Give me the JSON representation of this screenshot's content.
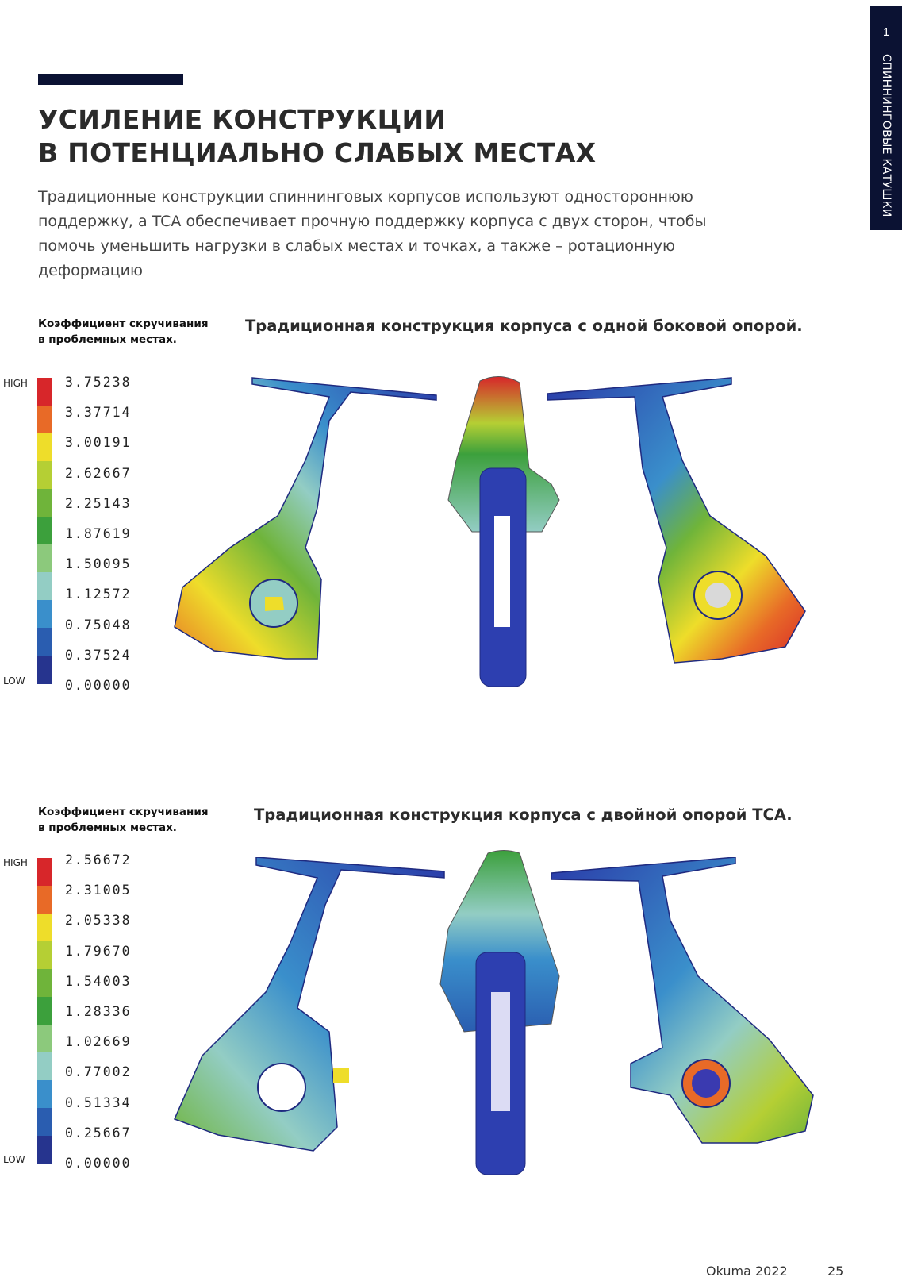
{
  "side_tab": {
    "number": "1",
    "label": "СПИННИНГОВЫЕ КАТУШКИ"
  },
  "title": {
    "line1": "УСИЛЕНИЕ КОНСТРУКЦИИ",
    "line2": "В ПОТЕНЦИАЛЬНО СЛАБЫХ МЕСТАХ"
  },
  "intro": "Традиционные конструкции спиннинговых корпусов используют одностороннюю поддержку, а TCA обеспечивает прочную поддержку корпуса с двух сторон, чтобы помочь уменьшить нагрузки в слабых местах и точках, а также – ротационную деформацию",
  "colors": {
    "accent": "#0b1233",
    "scale": [
      "#d7262a",
      "#e86a27",
      "#eedd2a",
      "#b5cf34",
      "#6fb43a",
      "#3ca03c",
      "#8cc97c",
      "#93cdc4",
      "#3a8fcb",
      "#2a5db0",
      "#26348e"
    ]
  },
  "blocks": [
    {
      "scale_caption_1": "Коэффициент скручивания",
      "scale_caption_2": "в проблемных местах.",
      "caption": "Традиционная конструкция корпуса с одной боковой опорой.",
      "high": "HIGH",
      "low": "LOW",
      "values": [
        "3.75238",
        "3.37714",
        "3.00191",
        "2.62667",
        "2.25143",
        "1.87619",
        "1.50095",
        "1.12572",
        "0.75048",
        "0.37524",
        "0.00000"
      ]
    },
    {
      "scale_caption_1": "Коэффициент скручивания",
      "scale_caption_2": "в проблемных местах.",
      "caption": "Традиционная конструкция корпуса с двойной опорой TCA.",
      "high": "HIGH",
      "low": "LOW",
      "values": [
        "2.56672",
        "2.31005",
        "2.05338",
        "1.79670",
        "1.54003",
        "1.28336",
        "1.02669",
        "0.77002",
        "0.51334",
        "0.25667",
        "0.00000"
      ]
    }
  ],
  "footer": {
    "brand": "Okuma 2022",
    "page": "25"
  }
}
